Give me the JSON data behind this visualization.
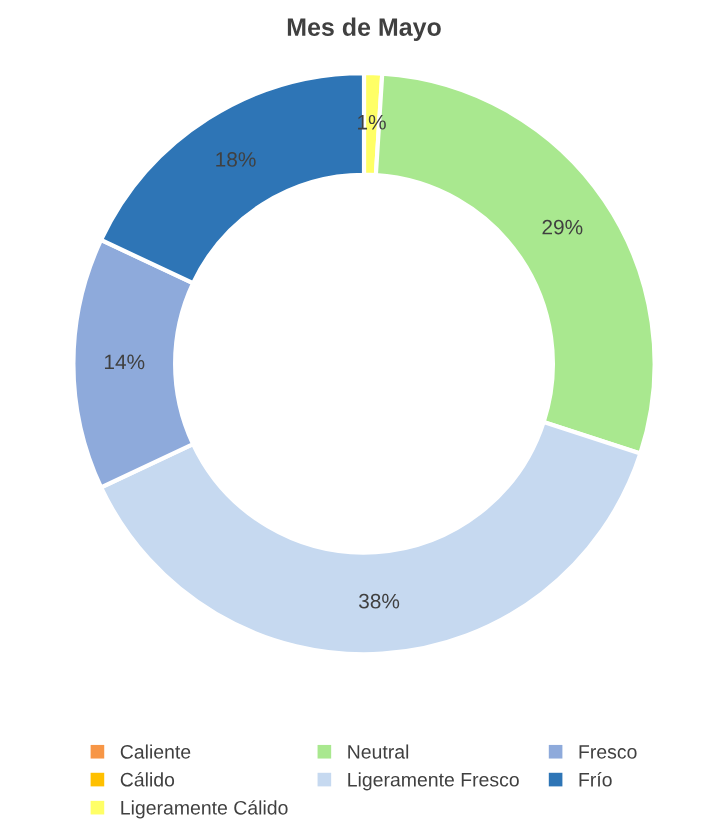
{
  "chart_data": {
    "type": "donut",
    "title": "Mes de Mayo",
    "categories": [
      "Caliente",
      "Cálido",
      "Ligeramente Cálido",
      "Neutral",
      "Ligeramente Fresco",
      "Fresco",
      "Frío"
    ],
    "values": [
      0,
      0,
      1,
      29,
      38,
      14,
      18
    ],
    "value_labels": [
      null,
      null,
      "1%",
      "29%",
      "38%",
      "14%",
      "18%"
    ],
    "colors": [
      "#f79646",
      "#ffc000",
      "#ffff66",
      "#a9e88f",
      "#c6d9f0",
      "#8eaadb",
      "#2e75b6"
    ],
    "legend": "bottom"
  }
}
